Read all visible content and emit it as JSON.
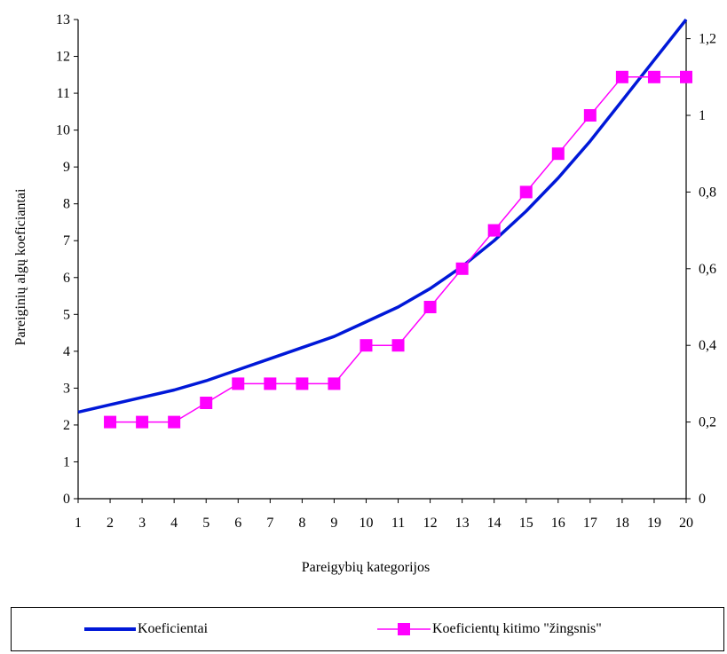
{
  "chart_data": {
    "type": "line",
    "title": "",
    "xlabel": "Pareigybių kategorijos",
    "ylabel": "Pareiginių algų koeficiantai",
    "categories": [
      "1",
      "2",
      "3",
      "4",
      "5",
      "6",
      "7",
      "8",
      "9",
      "10",
      "11",
      "12",
      "13",
      "14",
      "15",
      "16",
      "17",
      "18",
      "19",
      "20"
    ],
    "y_left": {
      "min": 0,
      "max": 13,
      "ticks": [
        "0",
        "1",
        "2",
        "3",
        "4",
        "5",
        "6",
        "7",
        "8",
        "9",
        "10",
        "11",
        "12",
        "13"
      ]
    },
    "y_right": {
      "min": 0,
      "max": 1.25,
      "ticks": [
        {
          "value": 0,
          "label": "0"
        },
        {
          "value": 0.2,
          "label": "0,2"
        },
        {
          "value": 0.4,
          "label": "0,4"
        },
        {
          "value": 0.6,
          "label": "0,6"
        },
        {
          "value": 0.8,
          "label": "0,8"
        },
        {
          "value": 1.0,
          "label": "1"
        },
        {
          "value": 1.2,
          "label": "1,2"
        }
      ]
    },
    "series": [
      {
        "name": "Koeficientai",
        "axis": "left",
        "color": "#0018d8",
        "marker": "none",
        "values": [
          2.35,
          2.55,
          2.75,
          2.95,
          3.2,
          3.5,
          3.8,
          4.1,
          4.4,
          4.8,
          5.2,
          5.7,
          6.3,
          7.0,
          7.8,
          8.7,
          9.7,
          10.8,
          11.9,
          13.0
        ]
      },
      {
        "name": "Koeficientų kitimo \"žingsnis\"",
        "axis": "right",
        "color": "#ff00ff",
        "marker": "square",
        "values": [
          null,
          0.2,
          0.2,
          0.2,
          0.25,
          0.3,
          0.3,
          0.3,
          0.3,
          0.4,
          0.4,
          0.5,
          0.6,
          0.7,
          0.8,
          0.9,
          1.0,
          1.1,
          1.1,
          1.1
        ]
      }
    ],
    "grid": false,
    "legend": "bottom"
  },
  "legend": {
    "items": [
      {
        "label": "Koeficientai",
        "color": "#0018d8",
        "marker": "none"
      },
      {
        "label": "Koeficientų kitimo \"žingsnis\"",
        "color": "#ff00ff",
        "marker": "square"
      }
    ]
  }
}
